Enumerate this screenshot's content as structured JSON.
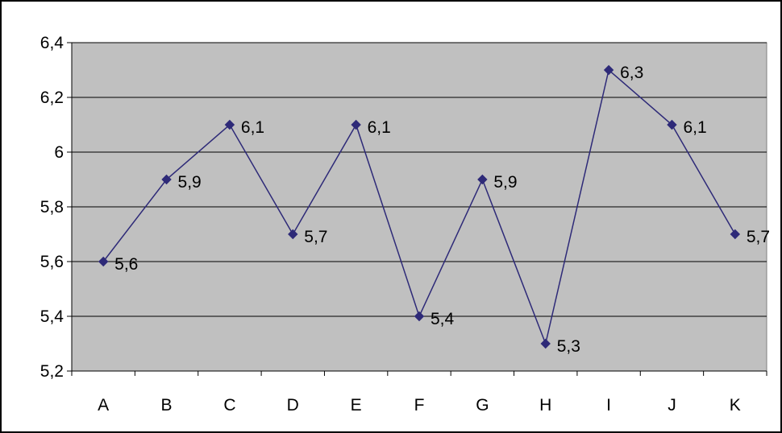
{
  "chart_data": {
    "type": "line",
    "title": "",
    "xlabel": "",
    "ylabel": "",
    "categories": [
      "A",
      "B",
      "C",
      "D",
      "E",
      "F",
      "G",
      "H",
      "I",
      "J",
      "K"
    ],
    "series": [
      {
        "values": [
          5.6,
          5.9,
          6.1,
          5.7,
          6.1,
          5.4,
          5.9,
          5.3,
          6.3,
          6.1,
          5.7
        ],
        "data_labels": [
          "5,6",
          "5,9",
          "6,1",
          "5,7",
          "6,1",
          "5,4",
          "5,9",
          "5,3",
          "6,3",
          "6,1",
          "5,7"
        ]
      }
    ],
    "ylim": [
      5.2,
      6.4
    ],
    "y_ticks": [
      5.2,
      5.4,
      5.6,
      5.8,
      6.0,
      6.2,
      6.4
    ],
    "y_tick_labels": [
      "5,2",
      "5,4",
      "5,6",
      "5,8",
      "6",
      "6,2",
      "6,4"
    ],
    "grid": true,
    "legend": "none",
    "colors": {
      "plot_background": "#c0c0c0",
      "series_line": "#2e2a78",
      "marker": "#2e2a78",
      "gridline": "#000000",
      "frame": "#000000"
    }
  }
}
